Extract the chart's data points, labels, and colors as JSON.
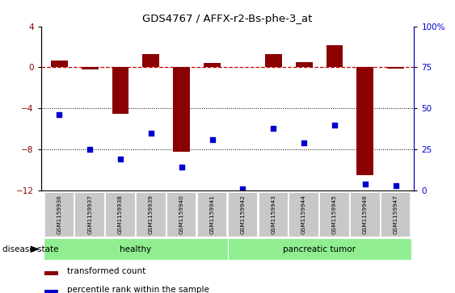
{
  "title": "GDS4767 / AFFX-r2-Bs-phe-3_at",
  "samples": [
    "GSM1159936",
    "GSM1159937",
    "GSM1159938",
    "GSM1159939",
    "GSM1159940",
    "GSM1159941",
    "GSM1159942",
    "GSM1159943",
    "GSM1159944",
    "GSM1159945",
    "GSM1159946",
    "GSM1159947"
  ],
  "transformed_count": [
    0.7,
    -0.2,
    -4.5,
    1.3,
    -8.2,
    0.4,
    0.0,
    1.3,
    0.5,
    2.2,
    -10.5,
    -0.1
  ],
  "percentile_rank": [
    46,
    25,
    19,
    35,
    14,
    31,
    1,
    38,
    29,
    40,
    4,
    3
  ],
  "bar_color": "#8B0000",
  "dot_color": "#0000CC",
  "zero_line_color": "#CC0000",
  "healthy_color": "#90EE90",
  "tumor_color": "#90EE90",
  "ylim_left": [
    -12,
    4
  ],
  "ylim_right": [
    0,
    100
  ],
  "yticks_left": [
    4,
    0,
    -4,
    -8,
    -12
  ],
  "yticks_right": [
    100,
    75,
    50,
    25,
    0
  ],
  "legend_label_bar": "transformed count",
  "legend_label_dot": "percentile rank within the sample",
  "disease_state_label": "disease state"
}
